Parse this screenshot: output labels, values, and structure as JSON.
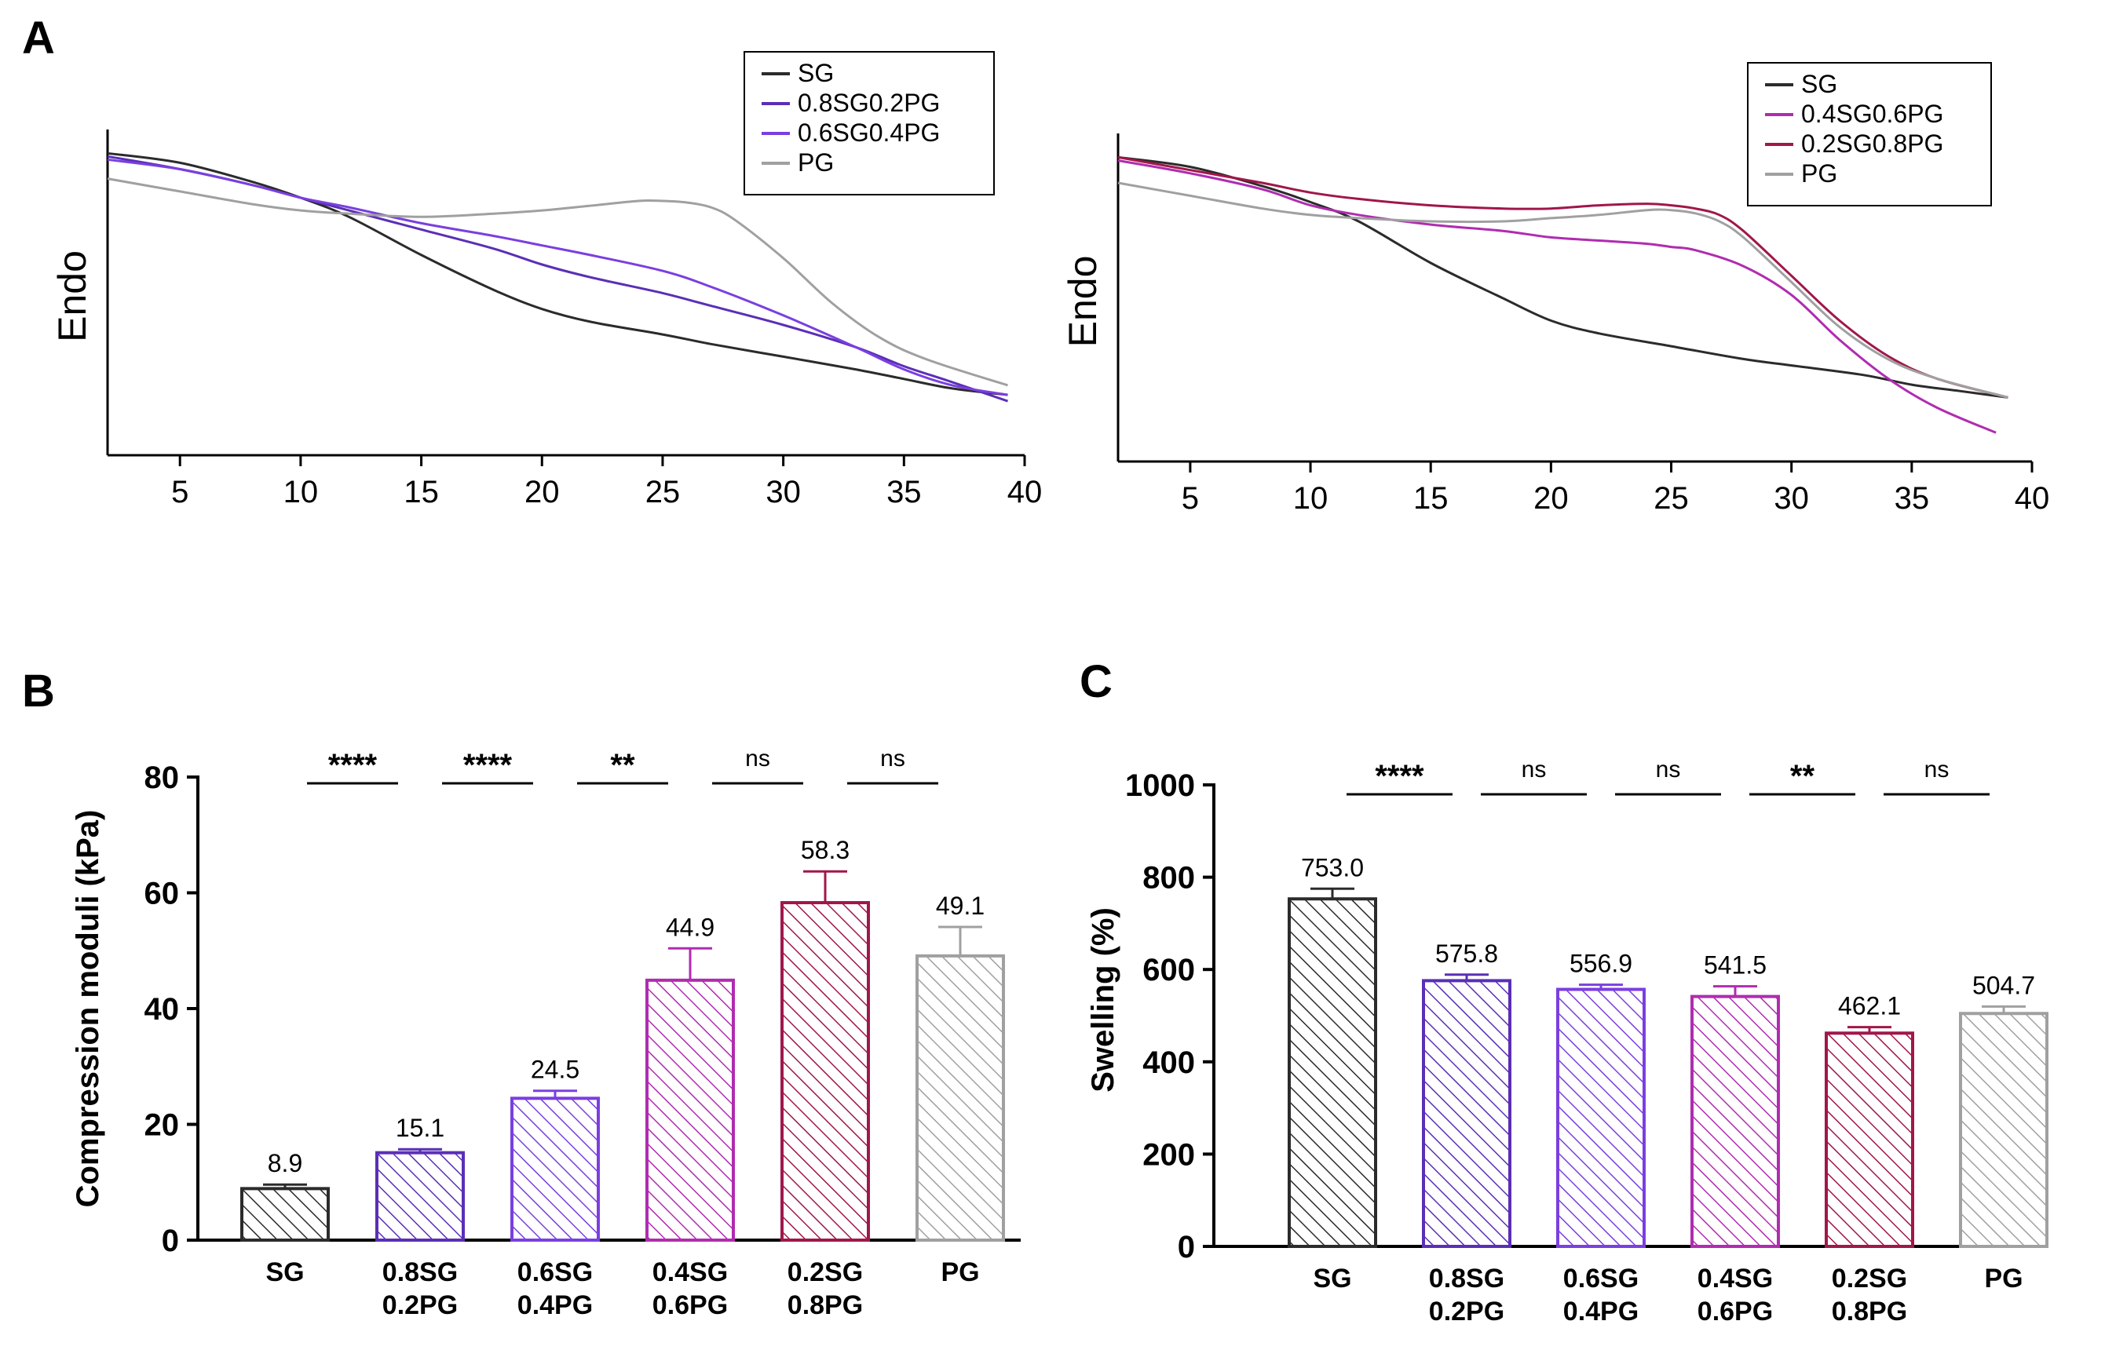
{
  "panels": {
    "a": "A",
    "b": "B",
    "c": "C"
  },
  "colors": {
    "SG": "#2b2b2b",
    "0.8SG0.2PG": "#5a2fb6",
    "0.6SG0.4PG": "#7a3fe0",
    "0.4SG0.6PG": "#b02cb0",
    "0.2SG0.8PG": "#a0174a",
    "PG": "#a0a0a0"
  },
  "chart_data": [
    {
      "id": "A1",
      "type": "line",
      "ylabel": "Endo",
      "xlabel": "",
      "xlim": [
        2,
        40
      ],
      "x_ticks": [
        "5",
        "10",
        "15",
        "20",
        "25",
        "30",
        "35",
        "40"
      ],
      "legend": "top-right",
      "series": [
        {
          "name": "SG",
          "color_key": "SG",
          "x": [
            2,
            5,
            8,
            10,
            12,
            15,
            18,
            20,
            22,
            25,
            27,
            30,
            33,
            35,
            37,
            39.3
          ],
          "y": [
            0.95,
            0.92,
            0.86,
            0.81,
            0.75,
            0.63,
            0.52,
            0.46,
            0.42,
            0.38,
            0.35,
            0.31,
            0.27,
            0.24,
            0.21,
            0.19
          ]
        },
        {
          "name": "0.8SG0.2PG",
          "color_key": "0.8SG0.2PG",
          "x": [
            2,
            5,
            8,
            10,
            12,
            15,
            18,
            20,
            22,
            25,
            27,
            30,
            33,
            35,
            37,
            39.3
          ],
          "y": [
            0.94,
            0.9,
            0.85,
            0.81,
            0.77,
            0.71,
            0.65,
            0.6,
            0.56,
            0.51,
            0.47,
            0.41,
            0.34,
            0.28,
            0.23,
            0.17
          ]
        },
        {
          "name": "0.6SG0.4PG",
          "color_key": "0.6SG0.4PG",
          "x": [
            2,
            5,
            8,
            10,
            12,
            15,
            18,
            20,
            22,
            25,
            27,
            30,
            33,
            35,
            37,
            39.3
          ],
          "y": [
            0.93,
            0.9,
            0.85,
            0.81,
            0.78,
            0.73,
            0.69,
            0.66,
            0.63,
            0.58,
            0.53,
            0.44,
            0.34,
            0.27,
            0.22,
            0.19
          ]
        },
        {
          "name": "PG",
          "color_key": "PG",
          "x": [
            2,
            5,
            8,
            10,
            12,
            15,
            18,
            20,
            22,
            24,
            25,
            26,
            27,
            28,
            30,
            32,
            34,
            36,
            39.3
          ],
          "y": [
            0.87,
            0.83,
            0.79,
            0.77,
            0.76,
            0.75,
            0.76,
            0.77,
            0.785,
            0.8,
            0.8,
            0.795,
            0.78,
            0.74,
            0.62,
            0.48,
            0.37,
            0.3,
            0.22
          ]
        }
      ]
    },
    {
      "id": "A2",
      "type": "line",
      "ylabel": "Endo",
      "xlabel": "",
      "xlim": [
        2,
        40
      ],
      "x_ticks": [
        "5",
        "10",
        "15",
        "20",
        "25",
        "30",
        "35",
        "40"
      ],
      "legend": "top-right",
      "series": [
        {
          "name": "SG",
          "color_key": "SG",
          "x": [
            2,
            5,
            8,
            10,
            12,
            15,
            18,
            20,
            22,
            25,
            28,
            30,
            33,
            35,
            37,
            39
          ],
          "y": [
            0.95,
            0.92,
            0.86,
            0.81,
            0.75,
            0.62,
            0.51,
            0.44,
            0.4,
            0.36,
            0.32,
            0.3,
            0.27,
            0.24,
            0.22,
            0.2
          ]
        },
        {
          "name": "0.4SG0.6PG",
          "color_key": "0.4SG0.6PG",
          "x": [
            2,
            5,
            8,
            10,
            12,
            15,
            18,
            20,
            22,
            24,
            25,
            26,
            28,
            30,
            32,
            34,
            36,
            38.5
          ],
          "y": [
            0.94,
            0.9,
            0.85,
            0.8,
            0.77,
            0.74,
            0.72,
            0.7,
            0.69,
            0.68,
            0.67,
            0.66,
            0.61,
            0.52,
            0.38,
            0.26,
            0.17,
            0.09
          ]
        },
        {
          "name": "0.2SG0.8PG",
          "color_key": "0.2SG0.8PG",
          "x": [
            2,
            5,
            8,
            10,
            12,
            15,
            18,
            20,
            22,
            24,
            25,
            26,
            27,
            28,
            30,
            32,
            34,
            36,
            39
          ],
          "y": [
            0.95,
            0.91,
            0.87,
            0.84,
            0.82,
            0.8,
            0.79,
            0.79,
            0.8,
            0.805,
            0.8,
            0.79,
            0.77,
            0.72,
            0.58,
            0.44,
            0.33,
            0.26,
            0.2
          ]
        },
        {
          "name": "PG",
          "color_key": "PG",
          "x": [
            2,
            5,
            8,
            10,
            12,
            15,
            18,
            20,
            22,
            24,
            25,
            26,
            27,
            28,
            30,
            32,
            34,
            36,
            39
          ],
          "y": [
            0.87,
            0.83,
            0.79,
            0.77,
            0.76,
            0.75,
            0.75,
            0.76,
            0.77,
            0.785,
            0.785,
            0.775,
            0.75,
            0.7,
            0.56,
            0.42,
            0.32,
            0.26,
            0.2
          ]
        }
      ]
    },
    {
      "id": "B",
      "type": "bar",
      "ylabel": "Compression moduli (kPa)",
      "ylim": [
        0,
        80
      ],
      "y_ticks": [
        "0",
        "20",
        "40",
        "60",
        "80"
      ],
      "categories": [
        {
          "line1": "SG",
          "line2": "",
          "color_key": "SG"
        },
        {
          "line1": "0.8SG",
          "line2": "0.2PG",
          "color_key": "0.8SG0.2PG"
        },
        {
          "line1": "0.6SG",
          "line2": "0.4PG",
          "color_key": "0.6SG0.4PG"
        },
        {
          "line1": "0.4SG",
          "line2": "0.6PG",
          "color_key": "0.4SG0.6PG"
        },
        {
          "line1": "0.2SG",
          "line2": "0.8PG",
          "color_key": "0.2SG0.8PG"
        },
        {
          "line1": "PG",
          "line2": "",
          "color_key": "PG"
        }
      ],
      "values": [
        8.9,
        15.1,
        24.5,
        44.9,
        58.3,
        49.1
      ],
      "value_labels": [
        "8.9",
        "15.1",
        "24.5",
        "44.9",
        "58.3",
        "49.1"
      ],
      "errors": [
        0.7,
        0.6,
        1.3,
        5.5,
        5.4,
        5.0
      ],
      "significance": [
        {
          "label": "****",
          "from": 0,
          "to": 1,
          "bold": true
        },
        {
          "label": "****",
          "from": 1,
          "to": 2,
          "bold": true
        },
        {
          "label": "**",
          "from": 2,
          "to": 3,
          "bold": true
        },
        {
          "label": "ns",
          "from": 3,
          "to": 4,
          "bold": false
        },
        {
          "label": "ns",
          "from": 4,
          "to": 5,
          "bold": false
        }
      ]
    },
    {
      "id": "C",
      "type": "bar",
      "ylabel": "Swelling (%)",
      "ylim": [
        0,
        1000
      ],
      "y_ticks": [
        "0",
        "200",
        "400",
        "600",
        "800",
        "1000"
      ],
      "categories": [
        {
          "line1": "SG",
          "line2": "",
          "color_key": "SG"
        },
        {
          "line1": "0.8SG",
          "line2": "0.2PG",
          "color_key": "0.8SG0.2PG"
        },
        {
          "line1": "0.6SG",
          "line2": "0.4PG",
          "color_key": "0.6SG0.4PG"
        },
        {
          "line1": "0.4SG",
          "line2": "0.6PG",
          "color_key": "0.4SG0.6PG"
        },
        {
          "line1": "0.2SG",
          "line2": "0.8PG",
          "color_key": "0.2SG0.8PG"
        },
        {
          "line1": "PG",
          "line2": "",
          "color_key": "PG"
        }
      ],
      "values": [
        753.0,
        575.8,
        556.9,
        541.5,
        462.1,
        504.7
      ],
      "value_labels": [
        "753.0",
        "575.8",
        "556.9",
        "541.5",
        "462.1",
        "504.7"
      ],
      "errors": [
        22,
        13,
        10,
        22,
        13,
        15
      ],
      "significance": [
        {
          "label": "****",
          "from": 0,
          "to": 1,
          "bold": true
        },
        {
          "label": "ns",
          "from": 1,
          "to": 2,
          "bold": false
        },
        {
          "label": "ns",
          "from": 2,
          "to": 3,
          "bold": false
        },
        {
          "label": "**",
          "from": 3,
          "to": 4,
          "bold": true
        },
        {
          "label": "ns",
          "from": 4,
          "to": 5,
          "bold": false
        }
      ]
    }
  ]
}
